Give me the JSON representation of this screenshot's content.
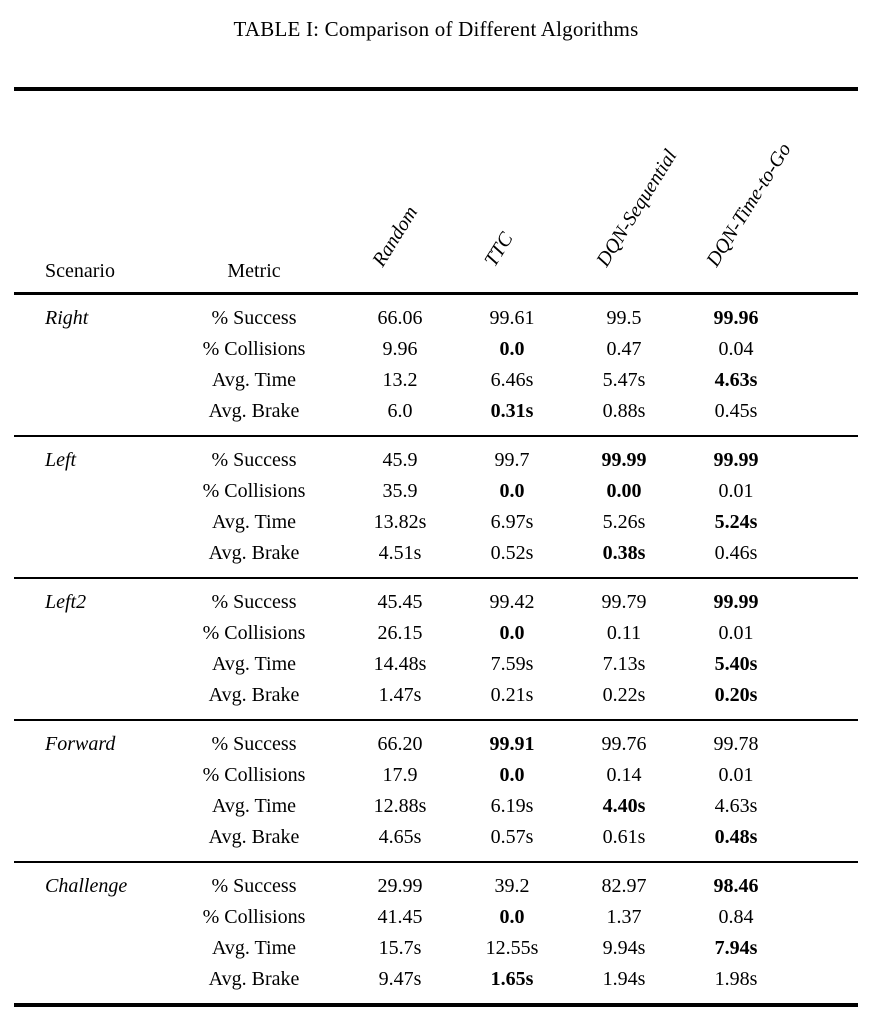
{
  "page": {
    "title": "TABLE I: Comparison of Different Algorithms",
    "background_color": "#ffffff",
    "text_color": "#000000"
  },
  "table": {
    "scenario_header": "Scenario",
    "metric_header": "Metric",
    "algorithm_headers": [
      "Random",
      "TTC",
      "DQN-Sequential",
      "DQN-Time-to-Go"
    ],
    "groups": [
      {
        "scenario": "Right",
        "rows": [
          {
            "metric": "% Success",
            "values": [
              "66.06",
              "99.61",
              "99.5",
              "99.96"
            ],
            "bold": [
              false,
              false,
              false,
              true
            ]
          },
          {
            "metric": "% Collisions",
            "values": [
              "9.96",
              "0.0",
              "0.47",
              "0.04"
            ],
            "bold": [
              false,
              true,
              false,
              false
            ]
          },
          {
            "metric": "Avg. Time",
            "values": [
              "13.2",
              "6.46s",
              "5.47s",
              "4.63s"
            ],
            "bold": [
              false,
              false,
              false,
              true
            ]
          },
          {
            "metric": "Avg. Brake",
            "values": [
              "6.0",
              "0.31s",
              "0.88s",
              "0.45s"
            ],
            "bold": [
              false,
              true,
              false,
              false
            ]
          }
        ]
      },
      {
        "scenario": "Left",
        "rows": [
          {
            "metric": "% Success",
            "values": [
              "45.9",
              "99.7",
              "99.99",
              "99.99"
            ],
            "bold": [
              false,
              false,
              true,
              true
            ]
          },
          {
            "metric": "% Collisions",
            "values": [
              "35.9",
              "0.0",
              "0.00",
              "0.01"
            ],
            "bold": [
              false,
              true,
              true,
              false
            ]
          },
          {
            "metric": "Avg. Time",
            "values": [
              "13.82s",
              "6.97s",
              "5.26s",
              "5.24s"
            ],
            "bold": [
              false,
              false,
              false,
              true
            ]
          },
          {
            "metric": "Avg. Brake",
            "values": [
              "4.51s",
              "0.52s",
              "0.38s",
              "0.46s"
            ],
            "bold": [
              false,
              false,
              true,
              false
            ]
          }
        ]
      },
      {
        "scenario": "Left2",
        "rows": [
          {
            "metric": "% Success",
            "values": [
              "45.45",
              "99.42",
              "99.79",
              "99.99"
            ],
            "bold": [
              false,
              false,
              false,
              true
            ]
          },
          {
            "metric": "% Collisions",
            "values": [
              "26.15",
              "0.0",
              "0.11",
              "0.01"
            ],
            "bold": [
              false,
              true,
              false,
              false
            ]
          },
          {
            "metric": "Avg. Time",
            "values": [
              "14.48s",
              "7.59s",
              "7.13s",
              "5.40s"
            ],
            "bold": [
              false,
              false,
              false,
              true
            ]
          },
          {
            "metric": "Avg. Brake",
            "values": [
              "1.47s",
              "0.21s",
              "0.22s",
              "0.20s"
            ],
            "bold": [
              false,
              false,
              false,
              true
            ]
          }
        ]
      },
      {
        "scenario": "Forward",
        "rows": [
          {
            "metric": "% Success",
            "values": [
              "66.20",
              "99.91",
              "99.76",
              "99.78"
            ],
            "bold": [
              false,
              true,
              false,
              false
            ]
          },
          {
            "metric": "% Collisions",
            "values": [
              "17.9",
              "0.0",
              "0.14",
              "0.01"
            ],
            "bold": [
              false,
              true,
              false,
              false
            ]
          },
          {
            "metric": "Avg. Time",
            "values": [
              "12.88s",
              "6.19s",
              "4.40s",
              "4.63s"
            ],
            "bold": [
              false,
              false,
              true,
              false
            ]
          },
          {
            "metric": "Avg. Brake",
            "values": [
              "4.65s",
              "0.57s",
              "0.61s",
              "0.48s"
            ],
            "bold": [
              false,
              false,
              false,
              true
            ]
          }
        ]
      },
      {
        "scenario": "Challenge",
        "rows": [
          {
            "metric": "% Success",
            "values": [
              "29.99",
              "39.2",
              "82.97",
              "98.46"
            ],
            "bold": [
              false,
              false,
              false,
              true
            ]
          },
          {
            "metric": "% Collisions",
            "values": [
              "41.45",
              "0.0",
              "1.37",
              "0.84"
            ],
            "bold": [
              false,
              true,
              false,
              false
            ]
          },
          {
            "metric": "Avg. Time",
            "values": [
              "15.7s",
              "12.55s",
              "9.94s",
              "7.94s"
            ],
            "bold": [
              false,
              false,
              false,
              true
            ]
          },
          {
            "metric": "Avg. Brake",
            "values": [
              "9.47s",
              "1.65s",
              "1.94s",
              "1.98s"
            ],
            "bold": [
              false,
              true,
              false,
              false
            ]
          }
        ]
      }
    ]
  }
}
